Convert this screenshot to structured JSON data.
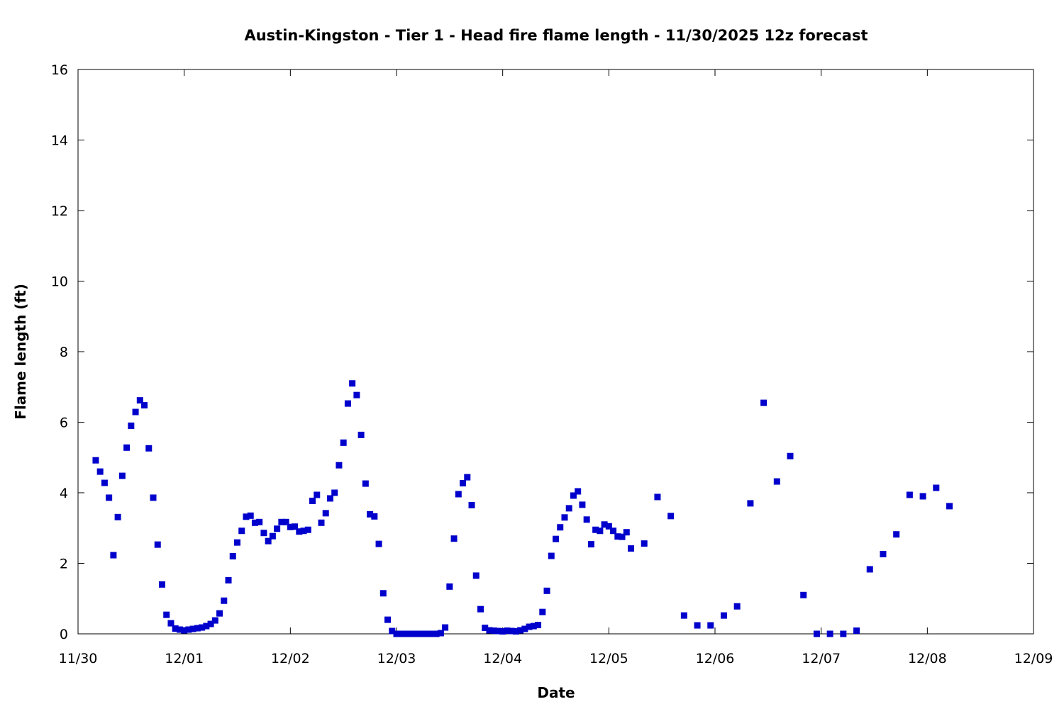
{
  "chart_data": {
    "type": "scatter",
    "title": "Austin-Kingston - Tier 1 - Head fire flame length - 11/30/2025 12z forecast",
    "xlabel": "Date",
    "ylabel": "Flame length (ft)",
    "xlim": [
      "2025-11-30T00:00",
      "2025-12-09T00:00"
    ],
    "ylim": [
      0,
      16
    ],
    "x_ticks": [
      "11/30",
      "12/01",
      "12/02",
      "12/03",
      "12/04",
      "12/05",
      "12/06",
      "12/07",
      "12/08",
      "12/09"
    ],
    "y_ticks": [
      "0",
      "2",
      "4",
      "6",
      "8",
      "10",
      "12",
      "14",
      "16"
    ],
    "grid": false,
    "legend": "none",
    "marker_color": "#0000cc",
    "series": [
      {
        "points": [
          [
            "2025-11-30T04:00",
            4.92
          ],
          [
            "2025-11-30T05:00",
            4.6
          ],
          [
            "2025-11-30T06:00",
            4.28
          ],
          [
            "2025-11-30T07:00",
            3.86
          ],
          [
            "2025-11-30T08:00",
            2.23
          ],
          [
            "2025-11-30T09:00",
            3.31
          ],
          [
            "2025-11-30T10:00",
            4.48
          ],
          [
            "2025-11-30T11:00",
            5.28
          ],
          [
            "2025-11-30T12:00",
            5.9
          ],
          [
            "2025-11-30T13:00",
            6.29
          ],
          [
            "2025-11-30T14:00",
            6.62
          ],
          [
            "2025-11-30T15:00",
            6.48
          ],
          [
            "2025-11-30T16:00",
            5.26
          ],
          [
            "2025-11-30T17:00",
            3.86
          ],
          [
            "2025-11-30T18:00",
            2.53
          ],
          [
            "2025-11-30T19:00",
            1.4
          ],
          [
            "2025-11-30T20:00",
            0.54
          ],
          [
            "2025-11-30T21:00",
            0.3
          ],
          [
            "2025-11-30T22:00",
            0.15
          ],
          [
            "2025-11-30T23:00",
            0.12
          ],
          [
            "2025-12-01T00:00",
            0.1
          ],
          [
            "2025-12-01T01:00",
            0.12
          ],
          [
            "2025-12-01T02:00",
            0.14
          ],
          [
            "2025-12-01T03:00",
            0.16
          ],
          [
            "2025-12-01T04:00",
            0.18
          ],
          [
            "2025-12-01T05:00",
            0.22
          ],
          [
            "2025-12-01T06:00",
            0.28
          ],
          [
            "2025-12-01T07:00",
            0.38
          ],
          [
            "2025-12-01T08:00",
            0.58
          ],
          [
            "2025-12-01T09:00",
            0.94
          ],
          [
            "2025-12-01T10:00",
            1.52
          ],
          [
            "2025-12-01T11:00",
            2.2
          ],
          [
            "2025-12-01T12:00",
            2.59
          ],
          [
            "2025-12-01T13:00",
            2.92
          ],
          [
            "2025-12-01T14:00",
            3.32
          ],
          [
            "2025-12-01T15:00",
            3.35
          ],
          [
            "2025-12-01T16:00",
            3.15
          ],
          [
            "2025-12-01T17:00",
            3.17
          ],
          [
            "2025-12-01T18:00",
            2.86
          ],
          [
            "2025-12-01T19:00",
            2.63
          ],
          [
            "2025-12-01T20:00",
            2.77
          ],
          [
            "2025-12-01T21:00",
            2.98
          ],
          [
            "2025-12-01T22:00",
            3.17
          ],
          [
            "2025-12-01T23:00",
            3.17
          ],
          [
            "2025-12-02T00:00",
            3.03
          ],
          [
            "2025-12-02T01:00",
            3.04
          ],
          [
            "2025-12-02T02:00",
            2.9
          ],
          [
            "2025-12-02T03:00",
            2.92
          ],
          [
            "2025-12-02T04:00",
            2.95
          ],
          [
            "2025-12-02T05:00",
            3.77
          ],
          [
            "2025-12-02T06:00",
            3.94
          ],
          [
            "2025-12-02T07:00",
            3.15
          ],
          [
            "2025-12-02T08:00",
            3.42
          ],
          [
            "2025-12-02T09:00",
            3.84
          ],
          [
            "2025-12-02T10:00",
            4.0
          ],
          [
            "2025-12-02T11:00",
            4.78
          ],
          [
            "2025-12-02T12:00",
            5.42
          ],
          [
            "2025-12-02T13:00",
            6.53
          ],
          [
            "2025-12-02T14:00",
            7.1
          ],
          [
            "2025-12-02T15:00",
            6.77
          ],
          [
            "2025-12-02T16:00",
            5.64
          ],
          [
            "2025-12-02T17:00",
            4.26
          ],
          [
            "2025-12-02T18:00",
            3.39
          ],
          [
            "2025-12-02T19:00",
            3.33
          ],
          [
            "2025-12-02T20:00",
            2.55
          ],
          [
            "2025-12-02T21:00",
            1.15
          ],
          [
            "2025-12-02T22:00",
            0.4
          ],
          [
            "2025-12-02T23:00",
            0.08
          ],
          [
            "2025-12-03T00:00",
            0.0
          ],
          [
            "2025-12-03T01:00",
            0.0
          ],
          [
            "2025-12-03T02:00",
            0.0
          ],
          [
            "2025-12-03T03:00",
            0.0
          ],
          [
            "2025-12-03T04:00",
            0.0
          ],
          [
            "2025-12-03T05:00",
            0.0
          ],
          [
            "2025-12-03T06:00",
            0.0
          ],
          [
            "2025-12-03T07:00",
            0.0
          ],
          [
            "2025-12-03T08:00",
            0.0
          ],
          [
            "2025-12-03T09:00",
            0.0
          ],
          [
            "2025-12-03T10:00",
            0.02
          ],
          [
            "2025-12-03T11:00",
            0.18
          ],
          [
            "2025-12-03T12:00",
            1.34
          ],
          [
            "2025-12-03T13:00",
            2.7
          ],
          [
            "2025-12-03T14:00",
            3.96
          ],
          [
            "2025-12-03T15:00",
            4.27
          ],
          [
            "2025-12-03T16:00",
            4.44
          ],
          [
            "2025-12-03T17:00",
            3.65
          ],
          [
            "2025-12-03T18:00",
            1.65
          ],
          [
            "2025-12-03T19:00",
            0.7
          ],
          [
            "2025-12-03T20:00",
            0.17
          ],
          [
            "2025-12-03T21:00",
            0.1
          ],
          [
            "2025-12-03T22:00",
            0.09
          ],
          [
            "2025-12-03T23:00",
            0.08
          ],
          [
            "2025-12-04T00:00",
            0.07
          ],
          [
            "2025-12-04T01:00",
            0.09
          ],
          [
            "2025-12-04T02:00",
            0.08
          ],
          [
            "2025-12-04T03:00",
            0.07
          ],
          [
            "2025-12-04T04:00",
            0.1
          ],
          [
            "2025-12-04T05:00",
            0.14
          ],
          [
            "2025-12-04T06:00",
            0.2
          ],
          [
            "2025-12-04T07:00",
            0.22
          ],
          [
            "2025-12-04T08:00",
            0.25
          ],
          [
            "2025-12-04T09:00",
            0.62
          ],
          [
            "2025-12-04T10:00",
            1.22
          ],
          [
            "2025-12-04T11:00",
            2.21
          ],
          [
            "2025-12-04T12:00",
            2.69
          ],
          [
            "2025-12-04T13:00",
            3.02
          ],
          [
            "2025-12-04T14:00",
            3.3
          ],
          [
            "2025-12-04T15:00",
            3.56
          ],
          [
            "2025-12-04T16:00",
            3.92
          ],
          [
            "2025-12-04T17:00",
            4.04
          ],
          [
            "2025-12-04T18:00",
            3.66
          ],
          [
            "2025-12-04T19:00",
            3.24
          ],
          [
            "2025-12-04T20:00",
            2.54
          ],
          [
            "2025-12-04T21:00",
            2.95
          ],
          [
            "2025-12-04T22:00",
            2.92
          ],
          [
            "2025-12-04T23:00",
            3.1
          ],
          [
            "2025-12-05T00:00",
            3.05
          ],
          [
            "2025-12-05T01:00",
            2.92
          ],
          [
            "2025-12-05T02:00",
            2.76
          ],
          [
            "2025-12-05T03:00",
            2.75
          ],
          [
            "2025-12-05T04:00",
            2.88
          ],
          [
            "2025-12-05T05:00",
            2.42
          ],
          [
            "2025-12-05T08:00",
            2.56
          ],
          [
            "2025-12-05T11:00",
            3.88
          ],
          [
            "2025-12-05T14:00",
            3.34
          ],
          [
            "2025-12-05T17:00",
            0.52
          ],
          [
            "2025-12-05T20:00",
            0.24
          ],
          [
            "2025-12-05T23:00",
            0.24
          ],
          [
            "2025-12-06T02:00",
            0.52
          ],
          [
            "2025-12-06T05:00",
            0.78
          ],
          [
            "2025-12-06T08:00",
            3.7
          ],
          [
            "2025-12-06T11:00",
            6.55
          ],
          [
            "2025-12-06T14:00",
            4.32
          ],
          [
            "2025-12-06T17:00",
            5.04
          ],
          [
            "2025-12-06T20:00",
            1.1
          ],
          [
            "2025-12-06T23:00",
            0.0
          ],
          [
            "2025-12-07T02:00",
            0.0
          ],
          [
            "2025-12-07T05:00",
            0.0
          ],
          [
            "2025-12-07T08:00",
            0.09
          ],
          [
            "2025-12-07T11:00",
            1.83
          ],
          [
            "2025-12-07T14:00",
            2.26
          ],
          [
            "2025-12-07T17:00",
            2.82
          ],
          [
            "2025-12-07T20:00",
            3.94
          ],
          [
            "2025-12-07T23:00",
            3.9
          ],
          [
            "2025-12-08T02:00",
            4.14
          ],
          [
            "2025-12-08T05:00",
            3.62
          ]
        ]
      }
    ]
  }
}
